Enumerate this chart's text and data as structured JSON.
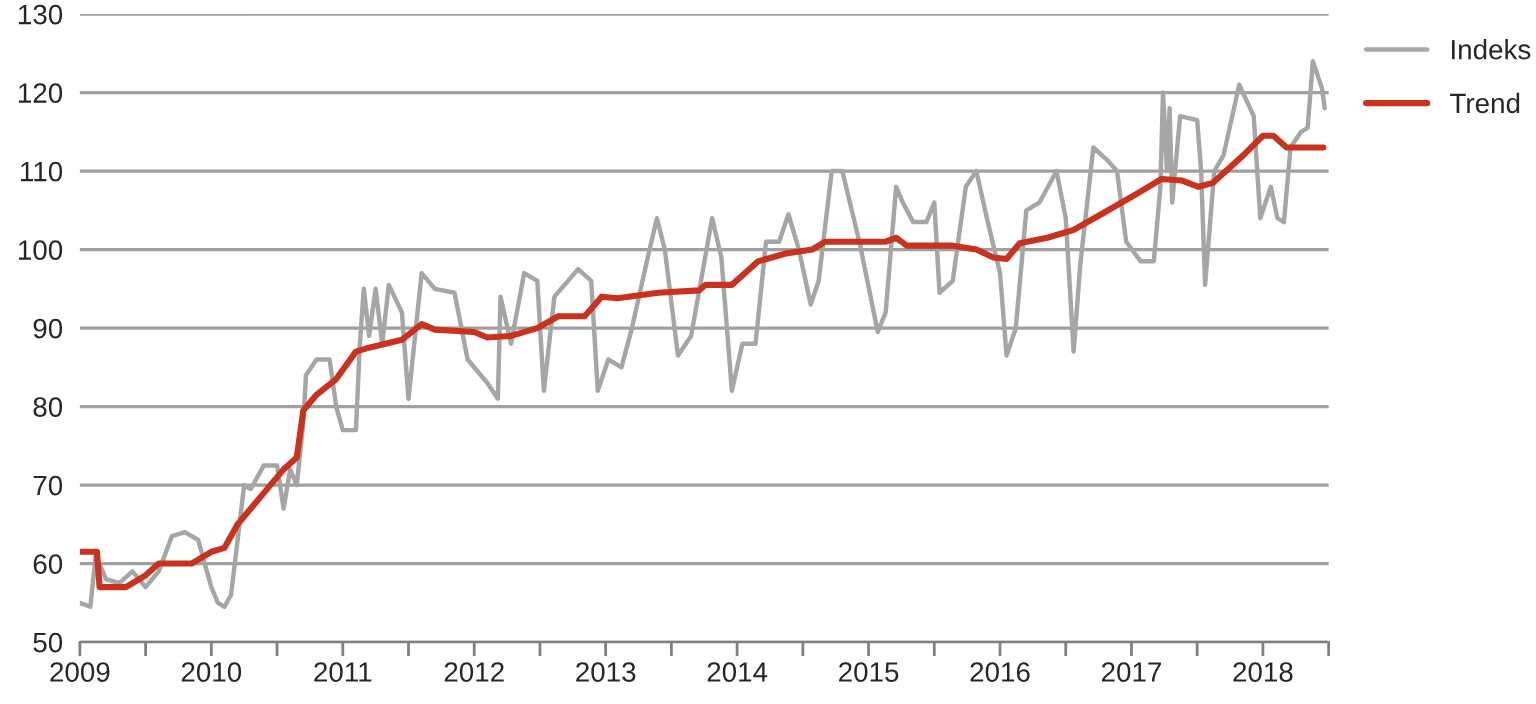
{
  "chart_data": {
    "type": "line",
    "series": [
      {
        "name": "Indeks",
        "color": "#a6a6a6",
        "x": [
          2009.0,
          2009.08,
          2009.12,
          2009.2,
          2009.3,
          2009.4,
          2009.5,
          2009.6,
          2009.7,
          2009.8,
          2009.9,
          2010.0,
          2010.05,
          2010.1,
          2010.15,
          2010.2,
          2010.25,
          2010.3,
          2010.4,
          2010.5,
          2010.55,
          2010.6,
          2010.65,
          2010.7,
          2010.72,
          2010.8,
          2010.9,
          2010.95,
          2011.0,
          2011.1,
          2011.13,
          2011.16,
          2011.2,
          2011.25,
          2011.3,
          2011.35,
          2011.45,
          2011.5,
          2011.55,
          2011.6,
          2011.7,
          2011.85,
          2011.95,
          2012.1,
          2012.18,
          2012.2,
          2012.28,
          2012.38,
          2012.48,
          2012.53,
          2012.61,
          2012.79,
          2012.89,
          2012.94,
          2013.02,
          2013.12,
          2013.2,
          2013.32,
          2013.39,
          2013.45,
          2013.55,
          2013.65,
          2013.81,
          2013.88,
          2013.96,
          2014.04,
          2014.14,
          2014.22,
          2014.32,
          2014.39,
          2014.47,
          2014.56,
          2014.62,
          2014.72,
          2014.8,
          2014.93,
          2015.07,
          2015.13,
          2015.21,
          2015.26,
          2015.34,
          2015.44,
          2015.5,
          2015.54,
          2015.64,
          2015.74,
          2015.82,
          2015.9,
          2016.0,
          2016.05,
          2016.12,
          2016.2,
          2016.3,
          2016.43,
          2016.5,
          2016.56,
          2016.61,
          2016.71,
          2016.81,
          2016.89,
          2016.96,
          2017.07,
          2017.17,
          2017.22,
          2017.24,
          2017.27,
          2017.29,
          2017.31,
          2017.37,
          2017.5,
          2017.53,
          2017.56,
          2017.63,
          2017.7,
          2017.82,
          2017.93,
          2017.98,
          2018.06,
          2018.11,
          2018.16,
          2018.21,
          2018.29,
          2018.34,
          2018.38,
          2018.42,
          2018.45,
          2018.47
        ],
        "values": [
          55,
          54.5,
          61,
          58,
          57.5,
          59,
          57,
          59,
          63.5,
          64,
          63,
          57,
          55,
          54.5,
          56,
          63,
          70,
          69.5,
          72.5,
          72.5,
          67,
          72,
          70,
          78,
          84,
          86,
          86,
          80,
          77,
          77,
          88,
          95,
          89,
          95,
          88,
          95.5,
          92,
          81,
          89,
          97,
          95,
          94.5,
          86,
          83,
          81,
          94,
          88,
          97,
          96,
          82,
          94,
          97.5,
          96,
          82,
          86,
          85,
          90,
          99,
          104,
          100,
          86.5,
          89,
          104,
          99,
          82,
          88,
          88,
          101,
          101,
          104.5,
          100,
          93,
          96,
          110,
          110,
          101,
          89.5,
          92,
          108,
          106,
          103.5,
          103.5,
          106,
          94.5,
          96,
          108,
          110,
          104,
          97,
          86.5,
          90,
          105,
          106,
          110,
          104,
          87,
          98,
          113,
          111.5,
          110,
          101,
          98.5,
          98.5,
          108,
          120,
          110,
          118,
          106,
          117,
          116.5,
          110,
          95.5,
          110,
          112,
          121,
          117,
          104,
          108,
          104,
          103.5,
          113,
          115,
          115.5,
          124,
          122,
          120.5,
          118
        ]
      },
      {
        "name": "Trend",
        "color": "#c8321e",
        "x": [
          2009.0,
          2009.13,
          2009.15,
          2009.35,
          2009.5,
          2009.6,
          2009.85,
          2010.0,
          2010.1,
          2010.2,
          2010.4,
          2010.55,
          2010.65,
          2010.7,
          2010.8,
          2010.95,
          2011.1,
          2011.2,
          2011.45,
          2011.6,
          2011.7,
          2012.0,
          2012.1,
          2012.28,
          2012.48,
          2012.64,
          2012.84,
          2012.97,
          2013.09,
          2013.4,
          2013.71,
          2013.76,
          2013.96,
          2014.16,
          2014.37,
          2014.57,
          2014.67,
          2015.13,
          2015.21,
          2015.29,
          2015.64,
          2015.82,
          2015.95,
          2016.05,
          2016.15,
          2016.36,
          2016.56,
          2016.77,
          2017.03,
          2017.23,
          2017.38,
          2017.51,
          2017.62,
          2017.85,
          2018.0,
          2018.08,
          2018.18,
          2018.46
        ],
        "values": [
          61.5,
          61.5,
          57,
          57,
          58.5,
          60,
          60,
          61.5,
          62,
          65,
          69,
          72,
          73.5,
          79.5,
          81.5,
          83.5,
          87,
          87.5,
          88.5,
          90.5,
          89.8,
          89.5,
          88.8,
          89,
          90,
          91.5,
          91.5,
          94,
          93.8,
          94.5,
          94.8,
          95.5,
          95.5,
          98.5,
          99.5,
          100,
          101,
          101,
          101.5,
          100.5,
          100.5,
          100,
          99,
          98.8,
          100.8,
          101.5,
          102.5,
          104.5,
          107,
          109,
          108.8,
          108,
          108.5,
          112,
          114.5,
          114.5,
          113,
          113
        ]
      }
    ],
    "xlim": [
      2009,
      2018.5
    ],
    "xticks": [
      {
        "value": 2009,
        "label": "2009"
      },
      {
        "value": 2009.5,
        "label": null
      },
      {
        "value": 2010,
        "label": "2010"
      },
      {
        "value": 2010.5,
        "label": null
      },
      {
        "value": 2011,
        "label": "2011"
      },
      {
        "value": 2011.5,
        "label": null
      },
      {
        "value": 2012,
        "label": "2012"
      },
      {
        "value": 2012.5,
        "label": null
      },
      {
        "value": 2013,
        "label": "2013"
      },
      {
        "value": 2013.5,
        "label": null
      },
      {
        "value": 2014,
        "label": "2014"
      },
      {
        "value": 2014.5,
        "label": null
      },
      {
        "value": 2015,
        "label": "2015"
      },
      {
        "value": 2015.5,
        "label": null
      },
      {
        "value": 2016,
        "label": "2016"
      },
      {
        "value": 2016.5,
        "label": null
      },
      {
        "value": 2017,
        "label": "2017"
      },
      {
        "value": 2017.5,
        "label": null
      },
      {
        "value": 2018,
        "label": "2018"
      },
      {
        "value": 2018.5,
        "label": null
      }
    ],
    "ylim": [
      50,
      130
    ],
    "yticks": [
      50,
      60,
      70,
      80,
      90,
      100,
      110,
      120,
      130
    ],
    "grid": "y",
    "legend": "top right",
    "marker": "none",
    "line_style": "solid"
  }
}
